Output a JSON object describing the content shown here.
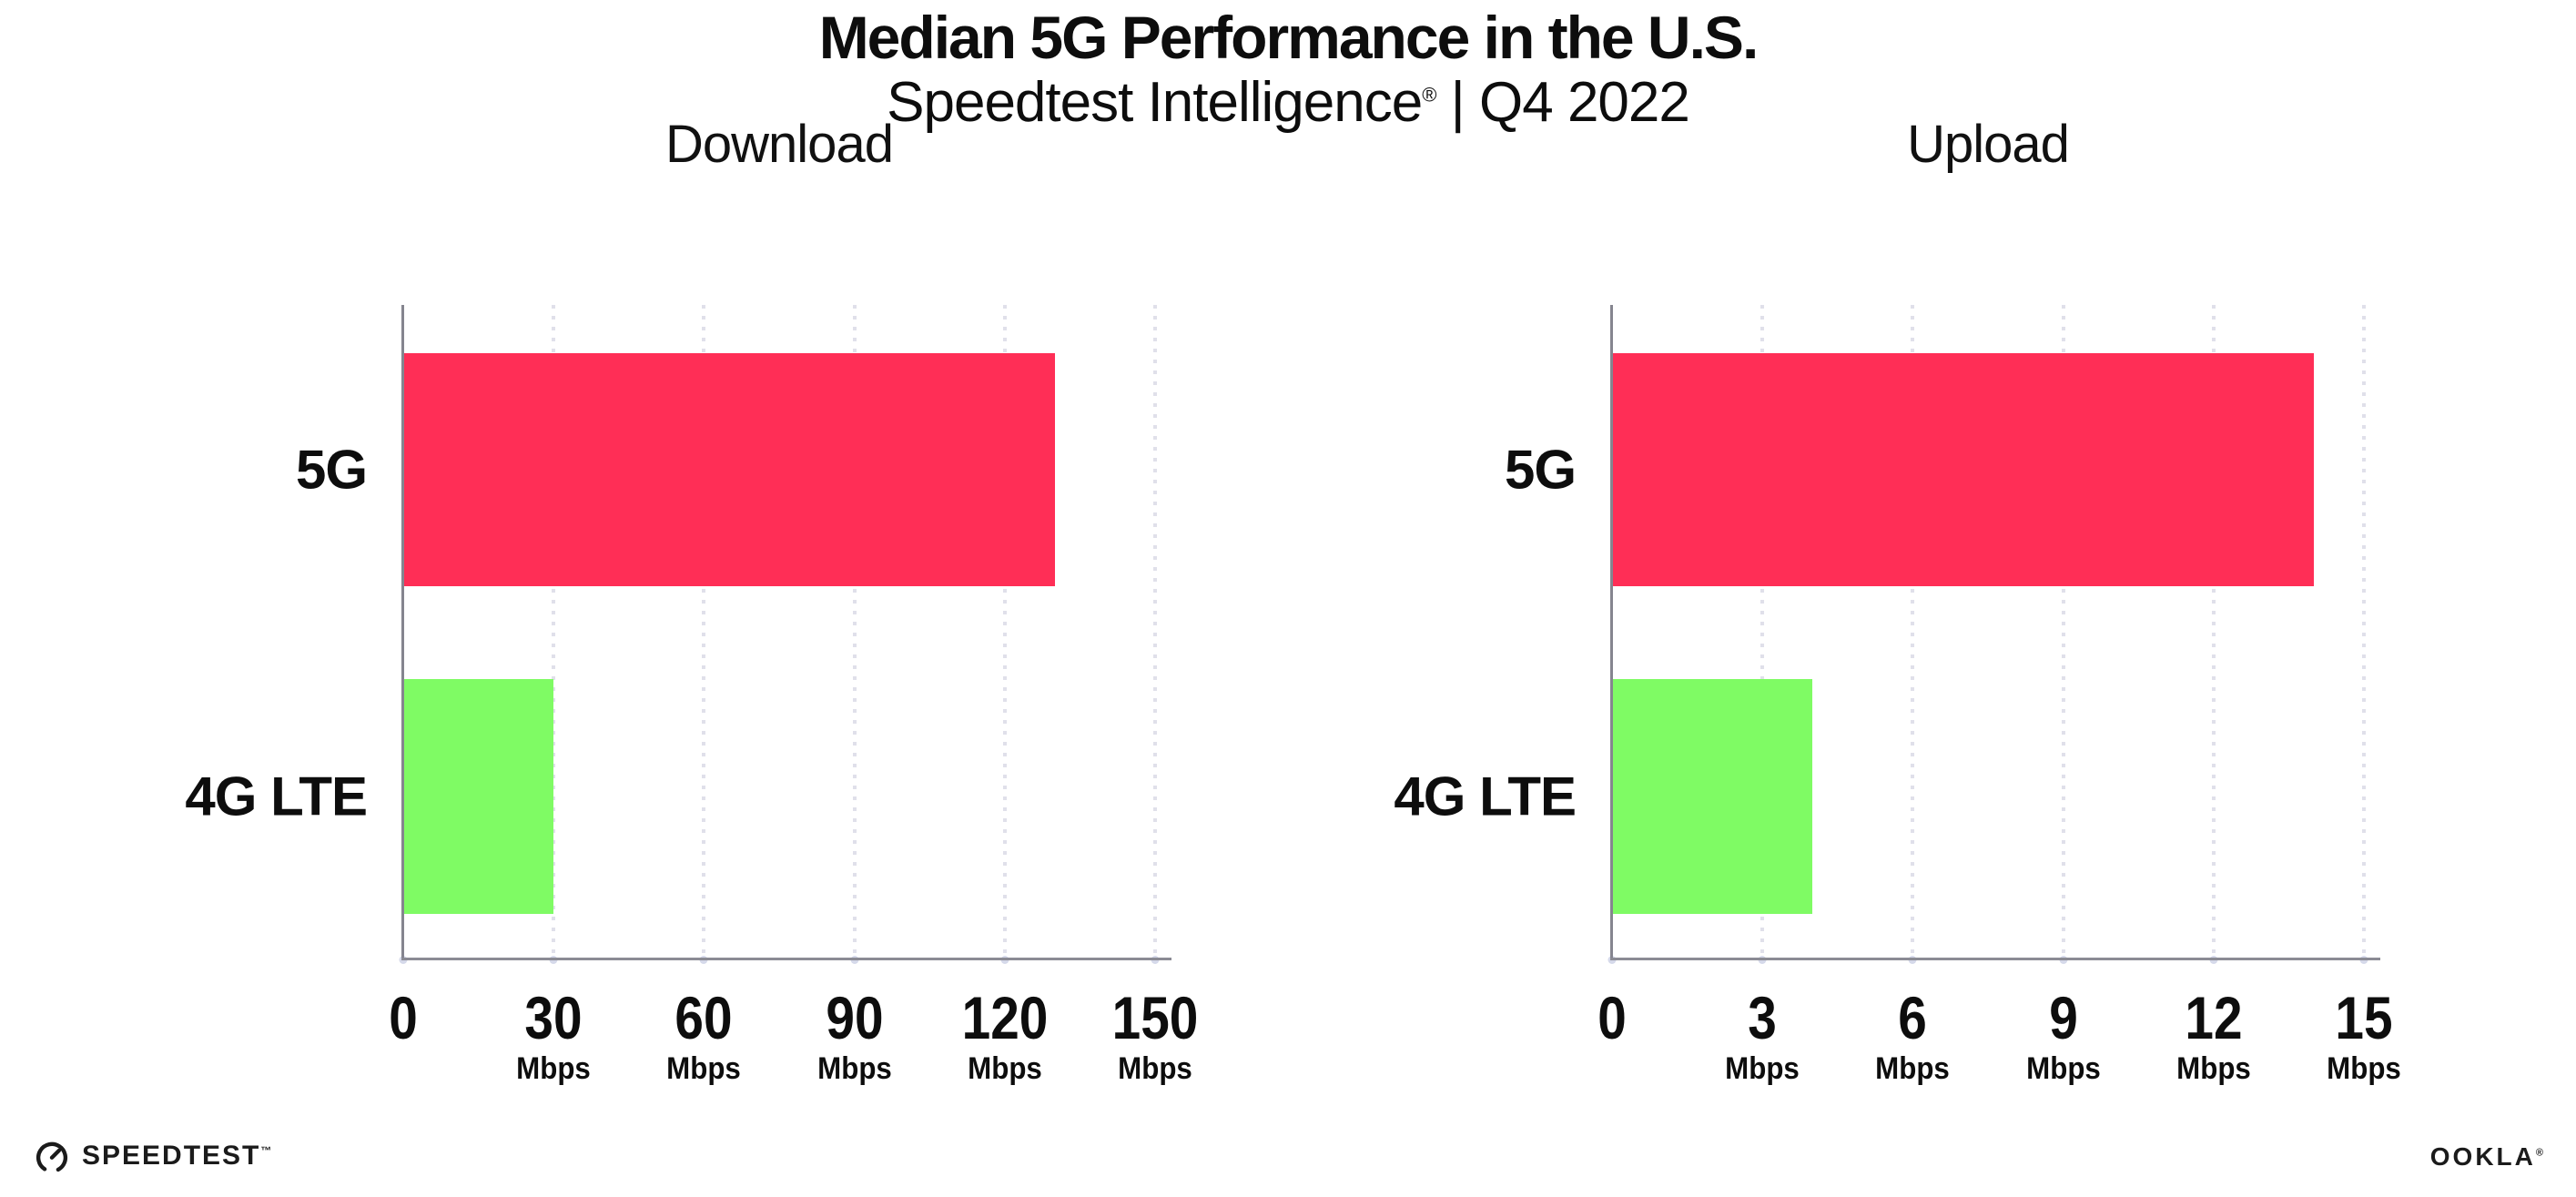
{
  "header": {
    "title": "Median 5G Performance in the U.S.",
    "subtitle_brand": "Speedtest Intelligence",
    "subtitle_reg": "®",
    "subtitle_rest": " | Q4 2022"
  },
  "chart_data": [
    {
      "type": "bar",
      "orientation": "horizontal",
      "title": "Download",
      "categories": [
        "5G",
        "4G LTE"
      ],
      "values": [
        130,
        30
      ],
      "unit": "Mbps",
      "xlim": [
        0,
        150
      ],
      "xticks": [
        0,
        30,
        60,
        90,
        120,
        150
      ],
      "bar_colors": [
        "#ff2e56",
        "#7ffb64"
      ],
      "grid": "dotted-vertical",
      "legend": "none"
    },
    {
      "type": "bar",
      "orientation": "horizontal",
      "title": "Upload",
      "categories": [
        "5G",
        "4G LTE"
      ],
      "values": [
        14,
        4
      ],
      "unit": "Mbps",
      "xlim": [
        0,
        15
      ],
      "xticks": [
        0,
        3,
        6,
        9,
        12,
        15
      ],
      "bar_colors": [
        "#ff2e56",
        "#7ffb64"
      ],
      "grid": "dotted-vertical",
      "legend": "none"
    }
  ],
  "colors": {
    "bar_5g": "#ff2e56",
    "bar_4g_lte": "#7ffb64",
    "axis": "#8b8b94",
    "gridline_dot": "#e0e0ea",
    "text": "#0d0d0d"
  },
  "footer": {
    "speedtest_label": "SPEEDTEST",
    "speedtest_tm": "™",
    "ookla_label": "OOKLA",
    "ookla_reg": "®"
  }
}
